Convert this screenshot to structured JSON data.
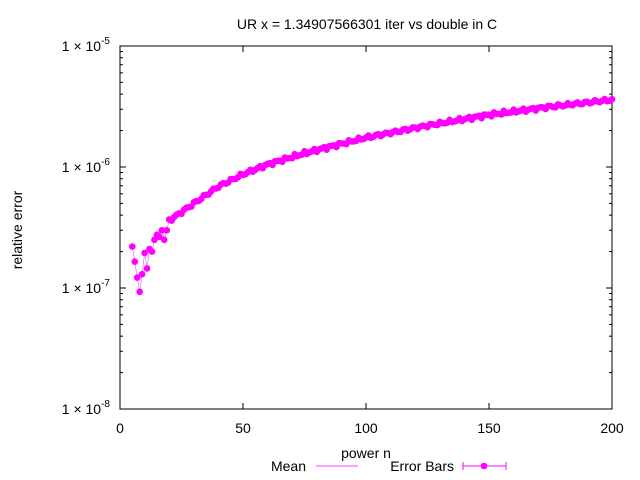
{
  "chart_data": {
    "type": "scatter",
    "title": "UR x = 1.34907566301 iter vs double in C",
    "xlabel": "power n",
    "ylabel": "relative error",
    "xlim": [
      0,
      200
    ],
    "ylim": [
      1e-08,
      1e-05
    ],
    "yscale": "log",
    "grid": false,
    "legend_position": "bottom",
    "x_ticks": [
      {
        "value": 0,
        "label": "0"
      },
      {
        "value": 50,
        "label": "50"
      },
      {
        "value": 100,
        "label": "100"
      },
      {
        "value": 150,
        "label": "150"
      },
      {
        "value": 200,
        "label": "200"
      }
    ],
    "y_ticks": [
      {
        "value": 1e-08,
        "mantissa": "1 × 10",
        "exp": "-8"
      },
      {
        "value": 1e-07,
        "mantissa": "1 × 10",
        "exp": "-7"
      },
      {
        "value": 1e-06,
        "mantissa": "1 × 10",
        "exp": "-6"
      },
      {
        "value": 1e-05,
        "mantissa": "1 × 10",
        "exp": "-5"
      }
    ],
    "legend": [
      {
        "name": "Mean",
        "style": "line"
      },
      {
        "name": "Error Bars",
        "style": "errorbar"
      }
    ],
    "color": "#ff00ff",
    "series": [
      {
        "name": "Error Bars",
        "x_start": 5,
        "x_step": 1,
        "first_points": [
          {
            "x": 5,
            "y": 2.2e-07
          },
          {
            "x": 6,
            "y": 1.65e-07
          },
          {
            "x": 7,
            "y": 1.22e-07
          },
          {
            "x": 8,
            "y": 9.3e-08
          },
          {
            "x": 9,
            "y": 1.3e-07
          },
          {
            "x": 10,
            "y": 1.95e-07
          },
          {
            "x": 11,
            "y": 1.45e-07
          },
          {
            "x": 12,
            "y": 2.1e-07
          },
          {
            "x": 13,
            "y": 2e-07
          },
          {
            "x": 14,
            "y": 2.5e-07
          },
          {
            "x": 15,
            "y": 2.75e-07
          },
          {
            "x": 16,
            "y": 2.65e-07
          },
          {
            "x": 17,
            "y": 3e-07
          },
          {
            "x": 18,
            "y": 2.5e-07
          },
          {
            "x": 19,
            "y": 3e-07
          }
        ],
        "trend_anchors": [
          {
            "x": 20,
            "y": 3.6e-07
          },
          {
            "x": 30,
            "y": 5e-07
          },
          {
            "x": 40,
            "y": 6.9e-07
          },
          {
            "x": 50,
            "y": 8.7e-07
          },
          {
            "x": 60,
            "y": 1.05e-06
          },
          {
            "x": 75,
            "y": 1.3e-06
          },
          {
            "x": 100,
            "y": 1.75e-06
          },
          {
            "x": 125,
            "y": 2.2e-06
          },
          {
            "x": 150,
            "y": 2.7e-06
          },
          {
            "x": 175,
            "y": 3.15e-06
          },
          {
            "x": 200,
            "y": 3.6e-06
          }
        ]
      }
    ]
  }
}
